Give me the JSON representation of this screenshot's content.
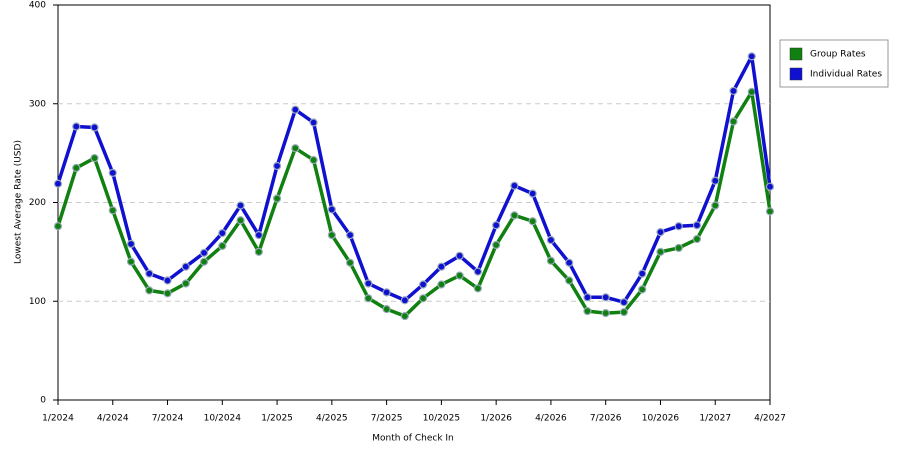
{
  "chart_data": {
    "type": "line",
    "x_label": "Month of Check In",
    "y_label": "Lowest Average Rate (USD)",
    "categories": [
      "1/2024",
      null,
      null,
      "4/2024",
      null,
      null,
      "7/2024",
      null,
      null,
      "10/2024",
      null,
      null,
      "1/2025",
      null,
      null,
      "4/2025",
      null,
      null,
      "7/2025",
      null,
      null,
      "10/2025",
      null,
      null,
      "1/2026",
      null,
      null,
      "4/2026",
      null,
      null,
      "7/2026",
      null,
      null,
      "10/2026",
      null,
      null,
      "1/2027",
      null,
      null,
      "4/2027"
    ],
    "series": [
      {
        "name": "Group Rates",
        "color": "#108010",
        "values": [
          176,
          235,
          245,
          192,
          140,
          111,
          108,
          118,
          140,
          156,
          182,
          150,
          204,
          255,
          243,
          167,
          139,
          103,
          92,
          85,
          103,
          117,
          126,
          113,
          157,
          187,
          181,
          141,
          121,
          90,
          88,
          89,
          112,
          150,
          154,
          163,
          197,
          282,
          312,
          191
        ]
      },
      {
        "name": "Individual Rates",
        "color": "#1010d0",
        "values": [
          219,
          277,
          276,
          230,
          158,
          128,
          121,
          135,
          149,
          169,
          197,
          167,
          237,
          294,
          281,
          193,
          167,
          118,
          109,
          101,
          117,
          135,
          146,
          130,
          177,
          217,
          209,
          162,
          139,
          104,
          104,
          99,
          128,
          170,
          176,
          177,
          222,
          313,
          348,
          216
        ]
      }
    ],
    "ylim": [
      0,
      400
    ],
    "yticks": [
      0,
      100,
      200,
      300,
      400
    ],
    "grid": true,
    "legend": "right"
  }
}
